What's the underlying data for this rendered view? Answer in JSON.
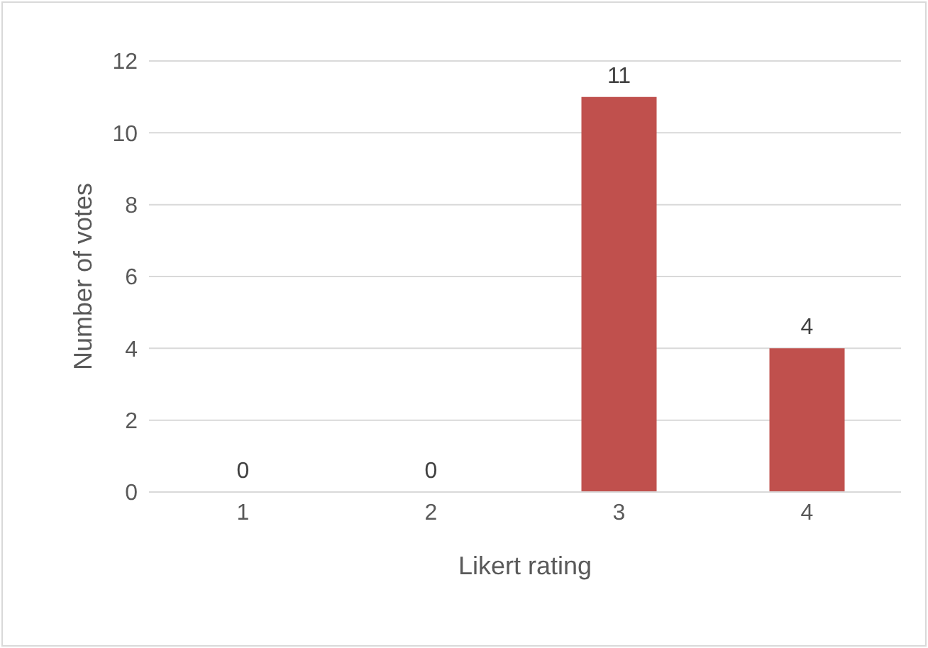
{
  "chart_data": {
    "type": "bar",
    "xlabel": "Likert rating",
    "ylabel": "Number of votes",
    "categories": [
      "1",
      "2",
      "3",
      "4"
    ],
    "values": [
      0,
      0,
      11,
      4
    ],
    "color": "#c0504d",
    "ylim": [
      0,
      12
    ],
    "yticks": [
      0,
      2,
      4,
      6,
      8,
      10,
      12
    ],
    "grid": "y",
    "data_labels": true
  }
}
